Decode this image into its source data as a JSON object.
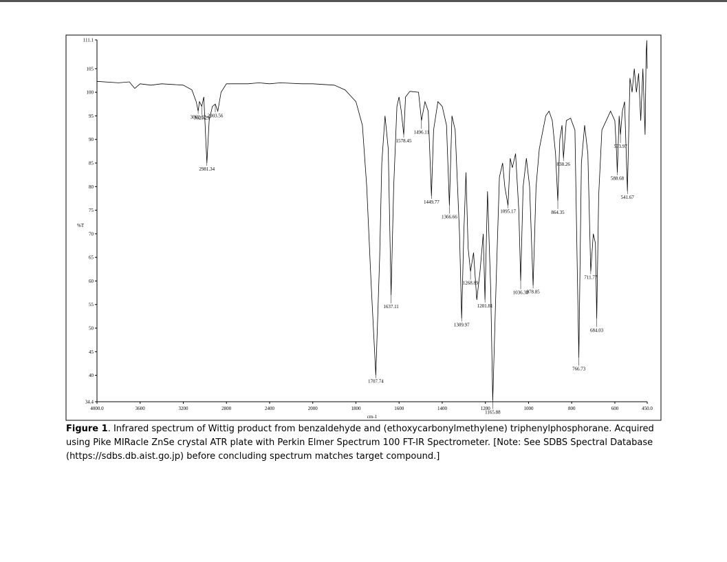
{
  "chart_data": {
    "type": "line",
    "x_label": "cm-1",
    "y_label": "%T",
    "xlim": [
      4000,
      450
    ],
    "ylim": [
      34.4,
      111.1
    ],
    "x_expand_below": 2000,
    "xticks": [
      {
        "value": 4000,
        "label": "4000.0"
      },
      3600,
      3200,
      2800,
      2400,
      2000,
      1800,
      1600,
      1400,
      1200,
      1000,
      800,
      600,
      {
        "value": 450,
        "label": "450.0"
      }
    ],
    "yticks": [
      34.4,
      40,
      45,
      50,
      55,
      60,
      65,
      70,
      75,
      80,
      85,
      90,
      95,
      100,
      105,
      111.1
    ],
    "color": "#000000",
    "x": [
      4000,
      3800,
      3700,
      3650,
      3600,
      3500,
      3400,
      3200,
      3120,
      3080,
      3062.32,
      3050,
      3029.29,
      3010,
      2981.34,
      2960,
      2930,
      2903.56,
      2880,
      2850,
      2800,
      2600,
      2500,
      2400,
      2300,
      2100,
      2000,
      1900,
      1850,
      1800,
      1770,
      1750,
      1730,
      1707.74,
      1690,
      1680,
      1665,
      1650,
      1637.11,
      1625,
      1610,
      1600,
      1590,
      1578.45,
      1570,
      1550,
      1510,
      1496.11,
      1480,
      1465,
      1449.77,
      1440,
      1420,
      1400,
      1380,
      1366.66,
      1355,
      1340,
      1320,
      1309.97,
      1300,
      1290,
      1280,
      1268.89,
      1255,
      1240,
      1225,
      1210,
      1201.81,
      1190,
      1175,
      1165.88,
      1150,
      1135,
      1120,
      1110,
      1095.17,
      1085,
      1075,
      1060,
      1045,
      1036.38,
      1025,
      1010,
      995,
      978.85,
      965,
      950,
      920,
      905,
      890,
      875,
      864.35,
      855,
      845,
      838.26,
      825,
      805,
      785,
      775,
      766.73,
      755,
      740,
      725,
      711.77,
      700,
      690,
      684.03,
      675,
      660,
      640,
      620,
      600,
      592,
      588.68,
      580,
      573.97,
      565,
      555,
      541.67,
      530,
      520,
      510,
      500,
      490,
      480,
      470,
      460,
      455,
      452,
      450
    ],
    "values": [
      102.3,
      102.0,
      102.2,
      100.8,
      101.8,
      101.5,
      101.8,
      101.5,
      100.5,
      98,
      96,
      98,
      97,
      99,
      85,
      94,
      97,
      97.5,
      96,
      100,
      101.8,
      101.8,
      102,
      101.8,
      102,
      101.8,
      101.8,
      101.5,
      100.5,
      98,
      93,
      80,
      60,
      40,
      65,
      85,
      95,
      88,
      57,
      80,
      97,
      99,
      96,
      91,
      99,
      100.2,
      100,
      94,
      98,
      96,
      78,
      92,
      98,
      97,
      93,
      76,
      95,
      92,
      70,
      52,
      70,
      83,
      67,
      62,
      66,
      56,
      62,
      70,
      56,
      79,
      58,
      34.6,
      60,
      82,
      85,
      80,
      76,
      86,
      84,
      87,
      75,
      60,
      80,
      86,
      80,
      59,
      80,
      88,
      95,
      96,
      94,
      87,
      77,
      90,
      93,
      86,
      94,
      94.5,
      92,
      65,
      43.8,
      85,
      93,
      87,
      62,
      70,
      68,
      52,
      78,
      92,
      94,
      96,
      94,
      87,
      83,
      95,
      91,
      96,
      98,
      79,
      103,
      100,
      105,
      100,
      104,
      94,
      105,
      91,
      108,
      111,
      105
    ],
    "peak_labels": [
      3062.32,
      3029.29,
      2981.34,
      2903.56,
      1707.74,
      1637.11,
      1578.45,
      1496.11,
      1449.77,
      1366.66,
      1309.97,
      1268.89,
      1201.81,
      1165.88,
      1095.17,
      1036.38,
      978.85,
      864.35,
      838.26,
      766.73,
      711.77,
      684.03,
      588.68,
      573.97,
      541.67
    ]
  },
  "caption": {
    "label": "Figure 1",
    "text": ". Infrared spectrum of Wittig product from benzaldehyde and (ethoxycarbonylmethylene) triphenylphosphorane. Acquired using Pike MIRacle ZnSe crystal ATR plate with Perkin Elmer Spectrum 100 FT-IR Spectrometer. [Note: See SDBS Spectral Database (https://sdbs.db.aist.go.jp) before concluding spectrum matches target compound.]"
  }
}
